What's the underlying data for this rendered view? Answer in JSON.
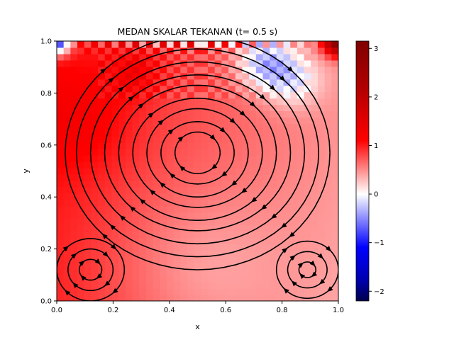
{
  "chart_data": {
    "type": "heatmap",
    "title": "MEDAN SKALAR TEKANAN (t= 0.5 s)",
    "xlabel": "x",
    "ylabel": "y",
    "xlim": [
      0.0,
      1.0
    ],
    "ylim": [
      0.0,
      1.0
    ],
    "x_ticks": [
      "0.0",
      "0.2",
      "0.4",
      "0.6",
      "0.8",
      "1.0"
    ],
    "y_ticks": [
      "0.0",
      "0.2",
      "0.4",
      "0.6",
      "0.8",
      "1.0"
    ],
    "colorbar": {
      "cmap": "seismic",
      "vmin": -2.2,
      "vmax": 3.15,
      "ticks": [
        "3",
        "2",
        "1",
        "0",
        "−1",
        "−2"
      ],
      "tick_values": [
        3,
        2,
        1,
        0,
        -1,
        -2
      ]
    },
    "overlay": "streamlines",
    "grid": false,
    "legend": "none",
    "grid_resolution": 41
  }
}
